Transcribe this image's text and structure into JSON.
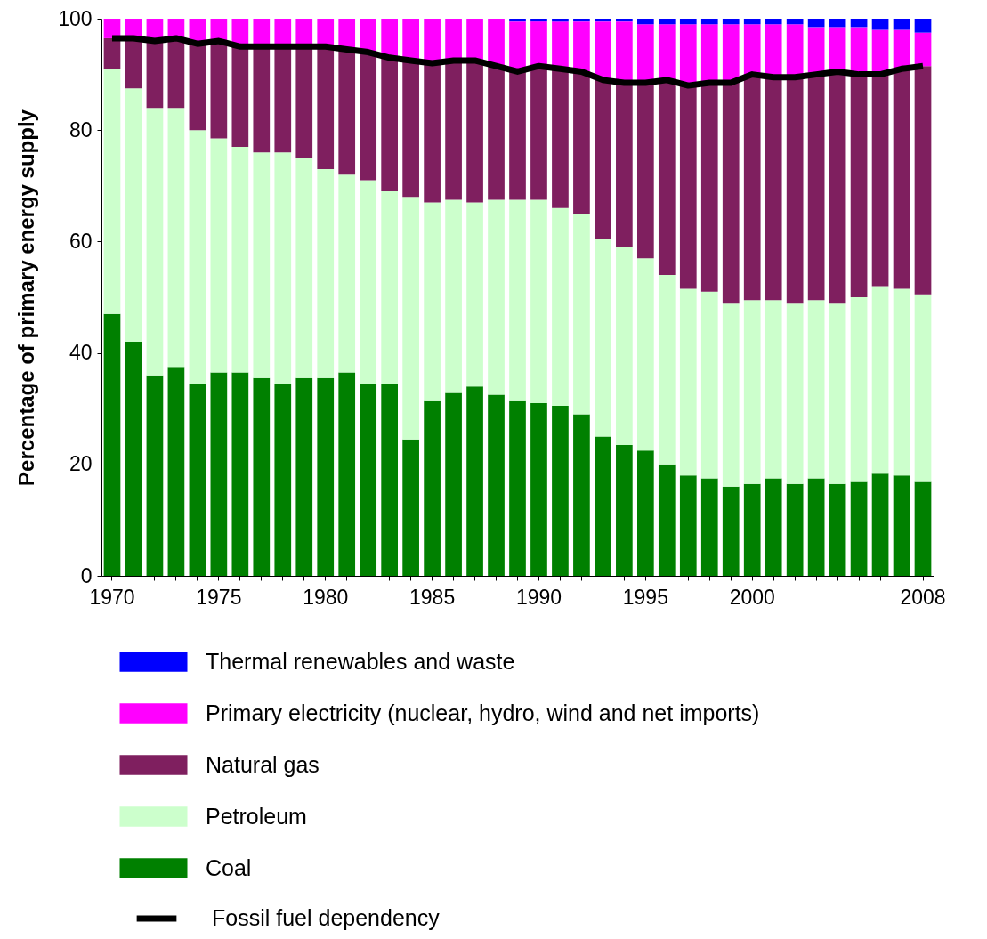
{
  "chart_data": {
    "type": "bar",
    "ylabel": "Percentage of primary energy supply",
    "categories": [
      "1970",
      null,
      null,
      null,
      null,
      "1975",
      null,
      null,
      null,
      null,
      "1980",
      null,
      null,
      null,
      null,
      "1985",
      null,
      null,
      null,
      null,
      "1990",
      null,
      null,
      null,
      null,
      "1995",
      null,
      null,
      null,
      null,
      "2000",
      null,
      null,
      null,
      null,
      null,
      null,
      null,
      "2008"
    ],
    "stacked": true,
    "legend": "bottom",
    "grid": false,
    "ylim": [
      0,
      100
    ],
    "yticks": [
      0,
      20,
      40,
      60,
      80,
      100
    ],
    "series": [
      {
        "name": "Coal",
        "color": "#008000",
        "values": [
          47,
          42,
          36,
          37.5,
          34.5,
          36.5,
          36.5,
          35.5,
          34.5,
          35.5,
          35.5,
          36.5,
          34.5,
          34.5,
          24.5,
          31.5,
          33,
          34,
          32.5,
          31.5,
          31,
          30.5,
          29,
          25,
          23.5,
          22.5,
          20,
          18,
          17.5,
          16,
          16.5,
          17.5,
          16.5,
          17.5,
          16.5,
          17,
          18.5,
          18,
          17
        ]
      },
      {
        "name": "Petroleum",
        "color": "#ccffcc",
        "values": [
          44,
          45.5,
          48,
          46.5,
          45.5,
          42,
          40.5,
          40.5,
          41.5,
          39.5,
          37.5,
          35.5,
          36.5,
          34.5,
          43.5,
          35.5,
          34.5,
          33,
          35,
          36,
          36.5,
          35.5,
          36,
          35.5,
          35.5,
          34.5,
          34,
          33.5,
          33.5,
          33,
          33,
          32,
          32.5,
          32,
          32.5,
          33,
          33.5,
          33.5,
          33.5
        ]
      },
      {
        "name": "Natural gas",
        "color": "#7f1f5f",
        "values": [
          5.5,
          9,
          12,
          12.5,
          15.5,
          17.5,
          18,
          19,
          19,
          20,
          22,
          22.5,
          23,
          24,
          24.5,
          25,
          25,
          25.5,
          24,
          23,
          24,
          25,
          25.5,
          28.5,
          29.5,
          31.5,
          35,
          36.5,
          37.5,
          39.5,
          40.5,
          40,
          40.5,
          40.5,
          41.5,
          40,
          38,
          39.5,
          41
        ]
      },
      {
        "name": "Primary electricity (nuclear, hydro, wind and net imports)",
        "color": "#ff00ff",
        "values": [
          3.5,
          3.5,
          4,
          3.5,
          4.5,
          4,
          5,
          5,
          5,
          5,
          5,
          5.5,
          6,
          7,
          7.5,
          8,
          7.5,
          7.5,
          8.5,
          9,
          8,
          8.5,
          9,
          10.5,
          11,
          10.5,
          10,
          11,
          10.5,
          10.5,
          9,
          9.5,
          9.5,
          8.5,
          8,
          8.5,
          8,
          7,
          6
        ]
      },
      {
        "name": "Thermal renewables and waste",
        "color": "#0000ff",
        "values": [
          0,
          0,
          0,
          0,
          0,
          0,
          0,
          0,
          0,
          0,
          0,
          0,
          0,
          0,
          0,
          0,
          0,
          0,
          0,
          0.5,
          0.5,
          0.5,
          0.5,
          0.5,
          0.5,
          1,
          1,
          1,
          1,
          1,
          1,
          1,
          1,
          1.5,
          1.5,
          1.5,
          2,
          2,
          2.5
        ]
      },
      {
        "name": "Fossil fuel dependency",
        "type": "line",
        "color": "#000000",
        "values": [
          96.5,
          96.5,
          96,
          96.5,
          95.5,
          96,
          95,
          95,
          95,
          95,
          95,
          94.5,
          94,
          93,
          92.5,
          92,
          92.5,
          92.5,
          91.5,
          90.5,
          91.5,
          91,
          90.5,
          89,
          88.5,
          88.5,
          89,
          88,
          88.5,
          88.5,
          90,
          89.5,
          89.5,
          90,
          90.5,
          90,
          90,
          91,
          91.5
        ]
      }
    ]
  }
}
